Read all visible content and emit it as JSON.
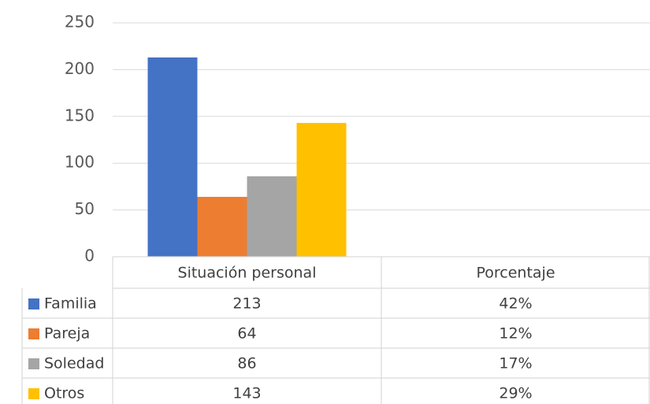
{
  "chart_data": {
    "type": "bar",
    "categories": [
      "Situación personal",
      "Porcentaje"
    ],
    "series": [
      {
        "name": "Familia",
        "color": "#4472c4",
        "values": [
          213,
          0.42
        ],
        "value_labels": [
          "213",
          "42%"
        ]
      },
      {
        "name": "Pareja",
        "color": "#ed7d31",
        "values": [
          64,
          0.12
        ],
        "value_labels": [
          "64",
          "12%"
        ]
      },
      {
        "name": "Soledad",
        "color": "#a5a5a5",
        "values": [
          86,
          0.17
        ],
        "value_labels": [
          "86",
          "17%"
        ]
      },
      {
        "name": "Otros",
        "color": "#ffc000",
        "values": [
          143,
          0.29
        ],
        "value_labels": [
          "143",
          "29%"
        ]
      }
    ],
    "ylim": [
      0,
      250
    ],
    "yticks": [
      0,
      50,
      100,
      150,
      200,
      250
    ],
    "grid": true,
    "data_table": true
  }
}
